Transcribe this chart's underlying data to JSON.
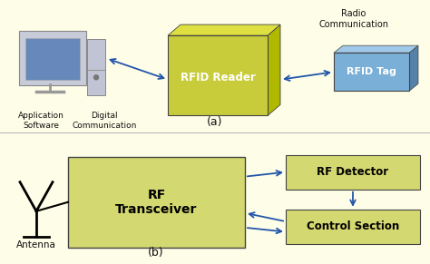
{
  "bg_color": "#fefee8",
  "yellow_dark": "#b0b800",
  "yellow_mid": "#c8cc00",
  "yellow_box": "#c8cc3a",
  "yellow_light": "#d4d870",
  "yellow_top": "#dde040",
  "blue_box": "#7ab0d8",
  "blue_side": "#5580a8",
  "blue_top": "#a0c8e8",
  "arrow_color": "#2255aa",
  "border_color": "#444444",
  "text_dark": "#111111",
  "part_a": {
    "rfid_reader_label": "RFID Reader",
    "rfid_tag_label": "RFID Tag",
    "radio_comm_label": "Radio\nCommunication",
    "digital_comm_label": "Digital\nCommunication",
    "app_software_label": "Application\nSoftware",
    "label_a": "(a)"
  },
  "part_b": {
    "rf_transceiver_label": "RF\nTransceiver",
    "rf_detector_label": "RF Detector",
    "control_section_label": "Control Section",
    "antenna_label": "Antenna",
    "label_b": "(b)"
  }
}
